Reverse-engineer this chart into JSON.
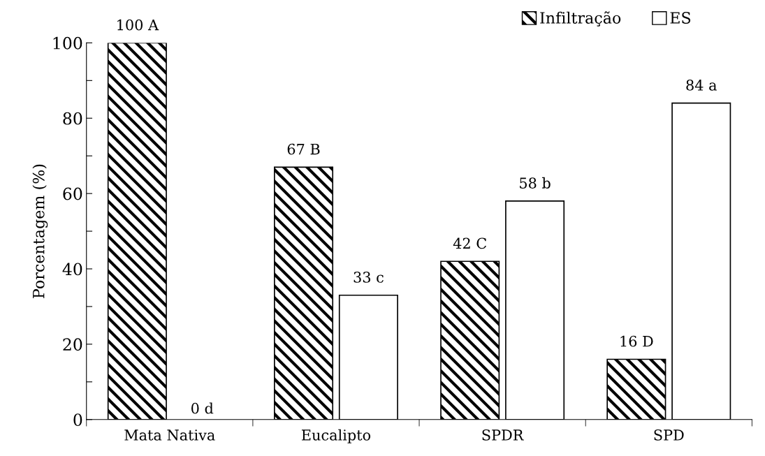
{
  "chart_data": {
    "type": "bar",
    "ylabel": "Porcentagem (%)",
    "categories": [
      "Mata Nativa",
      "Eucalipto",
      "SPDR",
      "SPD"
    ],
    "series": [
      {
        "name": "Infiltração",
        "color": "#000000",
        "values": [
          100,
          67,
          42,
          16
        ],
        "value_labels": [
          "100 A",
          "67 B",
          "42 C",
          "16 D"
        ]
      },
      {
        "name": "ES",
        "color": "#ffffff",
        "values": [
          0,
          33,
          58,
          84
        ],
        "value_labels": [
          "0 d",
          "33 c",
          "58 b",
          "84 a"
        ]
      }
    ],
    "ylim": [
      0,
      100
    ],
    "yticks": [
      0,
      {
        "value": 10,
        "label": null
      },
      20,
      {
        "value": 30,
        "label": null
      },
      40,
      {
        "value": 50,
        "label": null
      },
      60,
      {
        "value": 70,
        "label": null
      },
      80,
      {
        "value": 90,
        "label": null
      },
      100
    ],
    "grid": false,
    "legend": "top right"
  }
}
